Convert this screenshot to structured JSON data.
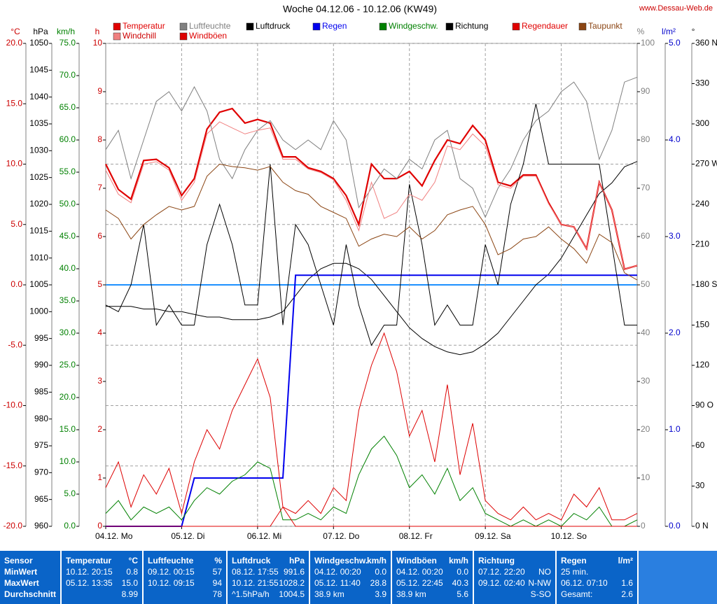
{
  "chart_data": {
    "type": "line",
    "title": "Woche 04.12.06 - 10.12.06 (KW49)",
    "source": "www.Dessau-Web.de",
    "xlim": [
      0,
      168
    ],
    "xticks": [
      {
        "value": 0,
        "label": "04.12. Mo"
      },
      {
        "value": 24,
        "label": "05.12. Di"
      },
      {
        "value": 48,
        "label": "06.12. Mi"
      },
      {
        "value": 72,
        "label": "07.12. Do"
      },
      {
        "value": 96,
        "label": "08.12. Fr"
      },
      {
        "value": 120,
        "label": "09.12. Sa"
      },
      {
        "value": 144,
        "label": "10.12. So"
      }
    ],
    "grid": true,
    "zero_line_color": "#1e90ff",
    "x": [
      0,
      4,
      8,
      12,
      16,
      20,
      24,
      28,
      32,
      36,
      40,
      44,
      48,
      52,
      56,
      60,
      64,
      68,
      72,
      76,
      80,
      84,
      88,
      92,
      96,
      100,
      104,
      108,
      112,
      116,
      120,
      124,
      128,
      132,
      136,
      140,
      144,
      148,
      152,
      156,
      160,
      164,
      168
    ],
    "axes": [
      {
        "name": "°C",
        "color": "#cc0000",
        "lim": [
          -20,
          20
        ],
        "ticks": [
          {
            "value": -20,
            "label": "-20.0"
          },
          {
            "value": -15,
            "label": "-15.0"
          },
          {
            "value": -10,
            "label": "-10.0"
          },
          {
            "value": -5,
            "label": "-5.0"
          },
          {
            "value": 0,
            "label": "0.0"
          },
          {
            "value": 5,
            "label": "5.0"
          },
          {
            "value": 10,
            "label": "10.0"
          },
          {
            "value": 15,
            "label": "15.0"
          },
          {
            "value": 20,
            "label": "20.0"
          }
        ]
      },
      {
        "name": "hPa",
        "color": "#000000",
        "lim": [
          960,
          1050
        ],
        "ticks": [
          960,
          965,
          970,
          975,
          980,
          985,
          990,
          995,
          1000,
          1005,
          1010,
          1015,
          1020,
          1025,
          1030,
          1035,
          1040,
          1045,
          1050
        ]
      },
      {
        "name": "km/h",
        "color": "#008000",
        "lim": [
          0,
          75
        ],
        "ticks": [
          {
            "value": 0,
            "label": "0.0"
          },
          {
            "value": 5,
            "label": "5.0"
          },
          {
            "value": 10,
            "label": "10.0"
          },
          {
            "value": 15,
            "label": "15.0"
          },
          {
            "value": 20,
            "label": "20.0"
          },
          {
            "value": 25,
            "label": "25.0"
          },
          {
            "value": 30,
            "label": "30.0"
          },
          {
            "value": 35,
            "label": "35.0"
          },
          {
            "value": 40,
            "label": "40.0"
          },
          {
            "value": 45,
            "label": "45.0"
          },
          {
            "value": 50,
            "label": "50.0"
          },
          {
            "value": 55,
            "label": "55.0"
          },
          {
            "value": 60,
            "label": "60.0"
          },
          {
            "value": 65,
            "label": "65.0"
          },
          {
            "value": 70,
            "label": "70.0"
          },
          {
            "value": 75,
            "label": "75.0"
          }
        ]
      },
      {
        "name": "h",
        "color": "#cc0000",
        "lim": [
          0,
          10
        ],
        "ticks": [
          0,
          1,
          2,
          3,
          4,
          5,
          6,
          7,
          8,
          9,
          10
        ]
      },
      {
        "name": "%",
        "color": "#808080",
        "lim": [
          0,
          100
        ],
        "ticks": [
          0,
          10,
          20,
          30,
          40,
          50,
          60,
          70,
          80,
          90,
          100
        ]
      },
      {
        "name": "l/m²",
        "color": "#0000cc",
        "lim": [
          0,
          5
        ],
        "ticks": [
          {
            "value": 0,
            "label": "0.0"
          },
          {
            "value": 1,
            "label": "1.0"
          },
          {
            "value": 2,
            "label": "2.0"
          },
          {
            "value": 3,
            "label": "3.0"
          },
          {
            "value": 4,
            "label": "4.0"
          },
          {
            "value": 5,
            "label": "5.0"
          }
        ]
      },
      {
        "name": "°",
        "color": "#000000",
        "lim": [
          0,
          360
        ],
        "ticks": [
          {
            "value": 0,
            "label": "0 N"
          },
          30,
          60,
          {
            "value": 90,
            "label": "90 O"
          },
          120,
          150,
          {
            "value": 180,
            "label": "180 S"
          },
          210,
          240,
          {
            "value": 270,
            "label": "270 W"
          },
          300,
          330,
          {
            "value": 360,
            "label": "360 N"
          }
        ]
      }
    ],
    "series": [
      {
        "name": "Temperatur",
        "color": "#e00000",
        "axis": 0,
        "values": [
          10.0,
          7.9,
          7.1,
          10.3,
          10.4,
          9.7,
          7.4,
          8.8,
          12.9,
          14.3,
          14.6,
          13.4,
          13.7,
          13.4,
          10.6,
          10.6,
          9.7,
          9.4,
          8.8,
          7.4,
          5.0,
          10.0,
          8.8,
          8.8,
          9.4,
          8.2,
          10.3,
          12.0,
          11.7,
          13.2,
          12.0,
          8.5,
          8.2,
          9.1,
          9.1,
          6.8,
          5.0,
          4.8,
          3.0,
          8.5,
          6.2,
          1.3,
          1.6
        ]
      },
      {
        "name": "Luftfeuchte",
        "color": "#808080",
        "axis": 4,
        "values": [
          78,
          82,
          72,
          80,
          88,
          90,
          86,
          91,
          86,
          76,
          72,
          78,
          82,
          84,
          80,
          78,
          80,
          78,
          84,
          80,
          66,
          70,
          74,
          72,
          76,
          74,
          80,
          82,
          72,
          70,
          64,
          70,
          74,
          80,
          84,
          86,
          90,
          92,
          88,
          76,
          82,
          92,
          93
        ]
      },
      {
        "name": "Luftdruck",
        "color": "#000000",
        "axis": 1,
        "values": [
          1001,
          1001,
          1001,
          1000.5,
          1000.5,
          1000,
          1000,
          999.5,
          999,
          999,
          998.5,
          998.5,
          998.5,
          999,
          1000,
          1003,
          1006,
          1008,
          1009,
          1009,
          1008,
          1006,
          1003,
          1000,
          997,
          995,
          993.5,
          992.5,
          992,
          992.5,
          994,
          996,
          999,
          1002,
          1005,
          1007,
          1010,
          1014,
          1018,
          1022,
          1024,
          1027,
          1028
        ]
      },
      {
        "name": "Regen",
        "color": "#0000ee",
        "axis": 5,
        "values": [
          0,
          0,
          0,
          0,
          0,
          0,
          0,
          0.5,
          0.5,
          0.5,
          0.5,
          0.5,
          0.5,
          0.5,
          0.5,
          2.6,
          2.6,
          2.6,
          2.6,
          2.6,
          2.6,
          2.6,
          2.6,
          2.6,
          2.6,
          2.6,
          2.6,
          2.6,
          2.6,
          2.6,
          2.6,
          2.6,
          2.6,
          2.6,
          2.6,
          2.6,
          2.6,
          2.6,
          2.6,
          2.6,
          2.6,
          2.6,
          2.6
        ]
      },
      {
        "name": "Windgeschw.",
        "color": "#008000",
        "axis": 2,
        "values": [
          2,
          4,
          1,
          3,
          2,
          3,
          1,
          4,
          6,
          5,
          7,
          8,
          10,
          9,
          1,
          1,
          2,
          1,
          3,
          2,
          8,
          12,
          14,
          11,
          6,
          8,
          5,
          9,
          4,
          6,
          2,
          1,
          0,
          1,
          0,
          1,
          0,
          2,
          1,
          3,
          0,
          0,
          1
        ]
      },
      {
        "name": "Richtung",
        "color": "#000000",
        "axis": 6,
        "values": [
          165,
          160,
          180,
          225,
          150,
          165,
          150,
          150,
          210,
          240,
          210,
          165,
          165,
          270,
          150,
          225,
          210,
          180,
          150,
          210,
          165,
          135,
          150,
          150,
          255,
          210,
          150,
          165,
          150,
          150,
          210,
          180,
          240,
          270,
          315,
          270,
          270,
          270,
          270,
          270,
          210,
          150,
          150
        ]
      },
      {
        "name": "Regendauer",
        "color": "#e00000",
        "axis": 3,
        "values": [
          0,
          0,
          0,
          0,
          0,
          0,
          0,
          0,
          0,
          0,
          0,
          0,
          0,
          0,
          0.4,
          0,
          0,
          0,
          0,
          0,
          0,
          0,
          0,
          0,
          0,
          0,
          0,
          0,
          0,
          0,
          0,
          0,
          0,
          0,
          0,
          0,
          0,
          0,
          0,
          0,
          0,
          0,
          0
        ]
      },
      {
        "name": "Taupunkt",
        "color": "#8b4513",
        "axis": 0,
        "values": [
          6.2,
          5.5,
          3.8,
          5.0,
          5.8,
          6.5,
          6.2,
          6.5,
          9.0,
          10.0,
          9.8,
          9.7,
          9.5,
          9.8,
          8.5,
          7.8,
          7.5,
          6.5,
          6.0,
          5.5,
          3.2,
          3.8,
          4.2,
          4.0,
          4.8,
          3.8,
          4.5,
          5.8,
          6.2,
          6.5,
          5.0,
          2.5,
          3.0,
          3.8,
          4.0,
          4.8,
          3.8,
          3.0,
          1.8,
          4.2,
          3.5,
          1.0,
          0.4
        ]
      },
      {
        "name": "Windchill",
        "color": "#f08080",
        "axis": 0,
        "values": [
          9.5,
          7.5,
          6.8,
          10.0,
          10.2,
          9.5,
          7.0,
          8.5,
          12.5,
          13.5,
          13.0,
          12.5,
          12.8,
          13.0,
          10.4,
          10.4,
          9.6,
          9.3,
          8.7,
          7.0,
          4.5,
          8.5,
          5.5,
          6.0,
          7.5,
          7.0,
          8.5,
          11.5,
          11.2,
          12.5,
          11.5,
          8.3,
          8.0,
          9.0,
          9.0,
          6.7,
          5.0,
          4.8,
          3.0,
          8.5,
          6.2,
          1.3,
          1.6
        ]
      },
      {
        "name": "Windböen",
        "color": "#dd0000",
        "axis": 2,
        "values": [
          6,
          10,
          3,
          8,
          5,
          9,
          2,
          10,
          15,
          12,
          18,
          22,
          26,
          20,
          3,
          2,
          4,
          2,
          6,
          4,
          18,
          25,
          30,
          24,
          14,
          18,
          10,
          22,
          8,
          16,
          4,
          2,
          1,
          3,
          1,
          2,
          1,
          5,
          3,
          6,
          1,
          1,
          2
        ]
      }
    ]
  },
  "table": {
    "corner": "Sensor",
    "row_labels": [
      "MinWert",
      "MaxWert",
      "Durchschnitt"
    ],
    "columns": [
      {
        "title": "Temperatur",
        "unit": "°C",
        "cells": [
          [
            "10.12. 20:15",
            "0.8"
          ],
          [
            "05.12. 13:35",
            "15.0"
          ],
          [
            null,
            "8.99"
          ]
        ]
      },
      {
        "title": "Luftfeuchte",
        "unit": "%",
        "cells": [
          [
            "09.12. 00:15",
            "57"
          ],
          [
            "10.12. 09:15",
            "94"
          ],
          [
            null,
            "78"
          ]
        ]
      },
      {
        "title": "Luftdruck",
        "unit": "hPa",
        "cells": [
          [
            "08.12. 17:55",
            "991.6"
          ],
          [
            "10.12. 21:55",
            "1028.2"
          ],
          [
            "^1.5hPa/h",
            "1004.5"
          ]
        ]
      },
      {
        "title": "Windgeschw.",
        "unit": "km/h",
        "cells": [
          [
            "04.12. 00:20",
            "0.0"
          ],
          [
            "05.12. 11:40",
            "28.8"
          ],
          [
            "38.9 km",
            "3.9"
          ]
        ]
      },
      {
        "title": "Windböen",
        "unit": "km/h",
        "cells": [
          [
            "04.12. 00:20",
            "0.0"
          ],
          [
            "05.12. 22:45",
            "40.3"
          ],
          [
            "38.9 km",
            "5.6"
          ]
        ]
      },
      {
        "title": "Richtung",
        "unit": null,
        "cells": [
          [
            "07.12. 22:20",
            "NO"
          ],
          [
            "09.12. 02:40",
            "N-NW"
          ],
          [
            null,
            "S-SO"
          ]
        ]
      },
      {
        "title": "Regen",
        "unit": "l/m²",
        "cells": [
          [
            "25 min.",
            null
          ],
          [
            "06.12. 07:10",
            "1.6"
          ],
          [
            "Gesamt:",
            "2.6"
          ]
        ]
      }
    ]
  }
}
